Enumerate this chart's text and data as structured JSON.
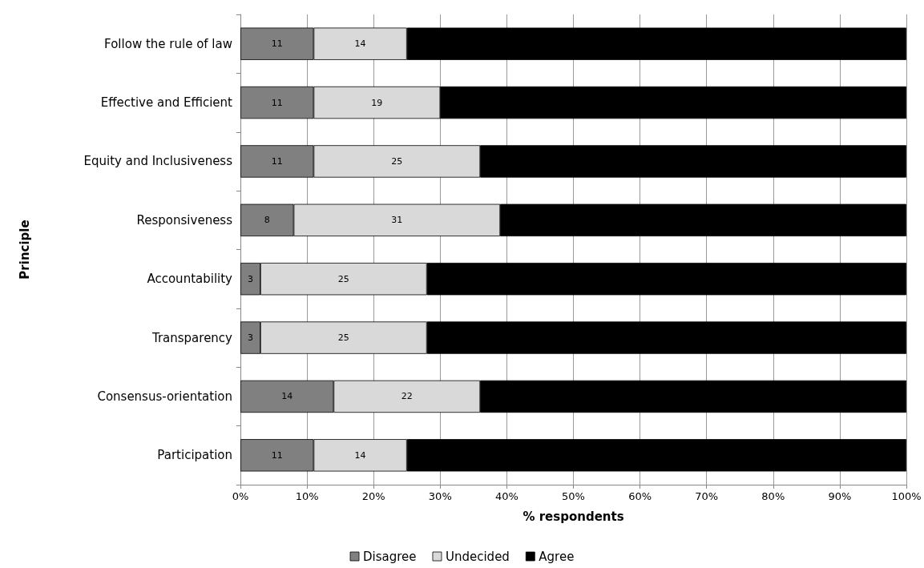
{
  "chart_data": {
    "type": "bar",
    "orientation": "horizontal",
    "stacked": true,
    "xlabel": "% respondents",
    "ylabel": "Principle",
    "categories": [
      "Follow the rule of law",
      "Effective and Efficient",
      "Equity and Inclusiveness",
      "Responsiveness",
      "Accountability",
      "Transparency",
      "Consensus-orientation",
      "Participation"
    ],
    "series": [
      {
        "name": "Disagree",
        "color": "#808080",
        "values": [
          11,
          11,
          11,
          8,
          3,
          3,
          14,
          11
        ],
        "value_labels": [
          "11",
          "11",
          "11",
          "8",
          "3",
          "3",
          "14",
          "11"
        ]
      },
      {
        "name": "Undecided",
        "color": "#d9d9d9",
        "values": [
          14,
          19,
          25,
          31,
          25,
          25,
          22,
          14
        ],
        "value_labels": [
          "14",
          "19",
          "25",
          "31",
          "25",
          "25",
          "22",
          "14"
        ]
      },
      {
        "name": "Agree",
        "color": "#000000",
        "values": [
          75,
          70,
          64,
          61,
          72,
          72,
          64,
          75
        ]
      }
    ],
    "xlim": [
      0,
      100
    ],
    "xticks": [
      {
        "value": 0,
        "label": "0%"
      },
      {
        "value": 10,
        "label": "10%"
      },
      {
        "value": 20,
        "label": "20%"
      },
      {
        "value": 30,
        "label": "30%"
      },
      {
        "value": 40,
        "label": "40%"
      },
      {
        "value": 50,
        "label": "50%"
      },
      {
        "value": 60,
        "label": "60%"
      },
      {
        "value": 70,
        "label": "70%"
      },
      {
        "value": 80,
        "label": "80%"
      },
      {
        "value": 90,
        "label": "90%"
      },
      {
        "value": 100,
        "label": "100%"
      }
    ],
    "grid": "x",
    "legend": "bottom"
  }
}
